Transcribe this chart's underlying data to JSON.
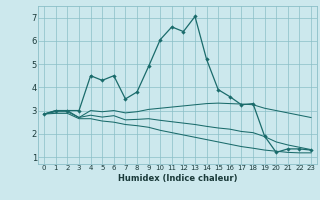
{
  "title": "",
  "xlabel": "Humidex (Indice chaleur)",
  "ylabel": "",
  "background_color": "#cce8ed",
  "grid_color": "#8bbfc7",
  "line_color": "#1a6b6b",
  "xlim": [
    -0.5,
    23.5
  ],
  "ylim": [
    0.7,
    7.5
  ],
  "xticks": [
    0,
    1,
    2,
    3,
    4,
    5,
    6,
    7,
    8,
    9,
    10,
    11,
    12,
    13,
    14,
    15,
    16,
    17,
    18,
    19,
    20,
    21,
    22,
    23
  ],
  "yticks": [
    1,
    2,
    3,
    4,
    5,
    6,
    7
  ],
  "lines": [
    {
      "x": [
        0,
        1,
        2,
        3,
        4,
        5,
        6,
        7,
        8,
        9,
        10,
        11,
        12,
        13,
        14,
        15,
        16,
        17,
        18,
        19,
        20,
        21,
        22,
        23
      ],
      "y": [
        2.85,
        3.0,
        3.0,
        3.0,
        4.5,
        4.3,
        4.5,
        3.5,
        3.8,
        4.9,
        6.05,
        6.6,
        6.4,
        7.05,
        5.2,
        3.9,
        3.6,
        3.25,
        3.3,
        1.9,
        1.2,
        1.35,
        1.35,
        1.3
      ],
      "marker": true
    },
    {
      "x": [
        0,
        1,
        2,
        3,
        4,
        5,
        6,
        7,
        8,
        9,
        10,
        11,
        12,
        13,
        14,
        15,
        16,
        17,
        18,
        19,
        20,
        21,
        22,
        23
      ],
      "y": [
        2.85,
        3.0,
        3.0,
        2.7,
        3.0,
        2.95,
        3.0,
        2.9,
        2.95,
        3.05,
        3.1,
        3.15,
        3.2,
        3.25,
        3.3,
        3.32,
        3.3,
        3.28,
        3.25,
        3.1,
        3.0,
        2.9,
        2.8,
        2.7
      ],
      "marker": false
    },
    {
      "x": [
        0,
        1,
        2,
        3,
        4,
        5,
        6,
        7,
        8,
        9,
        10,
        11,
        12,
        13,
        14,
        15,
        16,
        17,
        18,
        19,
        20,
        21,
        22,
        23
      ],
      "y": [
        2.85,
        2.95,
        2.95,
        2.7,
        2.8,
        2.72,
        2.78,
        2.6,
        2.62,
        2.65,
        2.58,
        2.52,
        2.46,
        2.4,
        2.32,
        2.25,
        2.2,
        2.1,
        2.05,
        1.88,
        1.65,
        1.52,
        1.42,
        1.32
      ],
      "marker": false
    },
    {
      "x": [
        0,
        1,
        2,
        3,
        4,
        5,
        6,
        7,
        8,
        9,
        10,
        11,
        12,
        13,
        14,
        15,
        16,
        17,
        18,
        19,
        20,
        21,
        22,
        23
      ],
      "y": [
        2.85,
        2.88,
        2.88,
        2.65,
        2.65,
        2.55,
        2.5,
        2.4,
        2.35,
        2.28,
        2.15,
        2.05,
        1.95,
        1.85,
        1.75,
        1.65,
        1.55,
        1.45,
        1.38,
        1.3,
        1.25,
        1.2,
        1.18,
        1.18
      ],
      "marker": false
    }
  ]
}
